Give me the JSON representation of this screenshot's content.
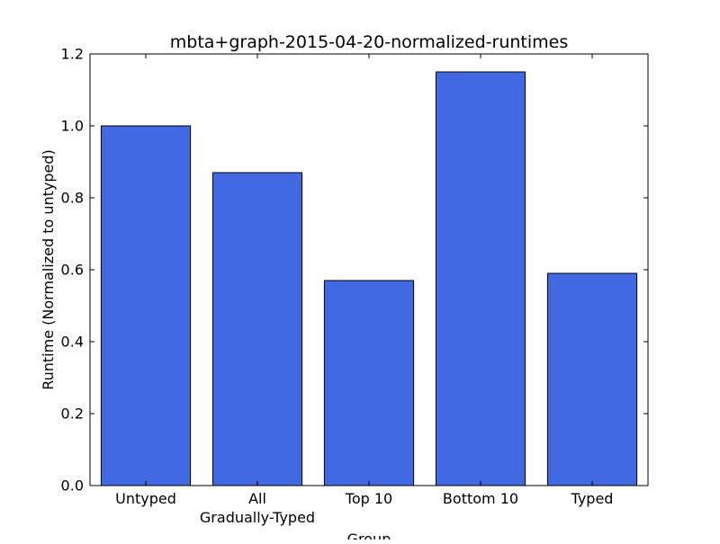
{
  "chart_data": {
    "type": "bar",
    "title": "mbta+graph-2015-04-20-normalized-runtimes",
    "xlabel": "Group",
    "ylabel": "Runtime (Normalized to untyped)",
    "categories": [
      [
        "Untyped"
      ],
      [
        "All",
        "Gradually-Typed"
      ],
      [
        "Top 10"
      ],
      [
        "Bottom 10"
      ],
      [
        "Typed"
      ]
    ],
    "values": [
      1.0,
      0.87,
      0.57,
      1.15,
      0.59
    ],
    "ylim": [
      0,
      1.2
    ],
    "yticks": [
      "0.0",
      "0.2",
      "0.4",
      "0.6",
      "0.8",
      "1.0",
      "1.2"
    ],
    "grid": false,
    "bar_color": "#4169e1",
    "edge_color": "#000000"
  }
}
